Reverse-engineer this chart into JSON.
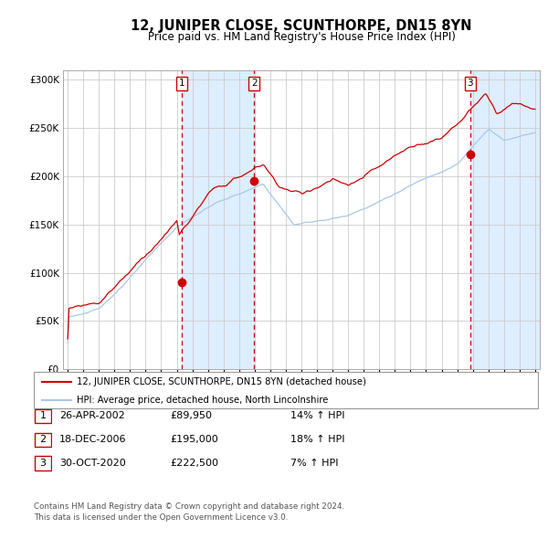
{
  "title": "12, JUNIPER CLOSE, SCUNTHORPE, DN15 8YN",
  "subtitle": "Price paid vs. HM Land Registry's House Price Index (HPI)",
  "legend_line1": "12, JUNIPER CLOSE, SCUNTHORPE, DN15 8YN (detached house)",
  "legend_line2": "HPI: Average price, detached house, North Lincolnshire",
  "footer1": "Contains HM Land Registry data © Crown copyright and database right 2024.",
  "footer2": "This data is licensed under the Open Government Licence v3.0.",
  "transactions": [
    {
      "num": 1,
      "date": "26-APR-2002",
      "price": "£89,950",
      "pct": "14%",
      "dir": "↑"
    },
    {
      "num": 2,
      "date": "18-DEC-2006",
      "price": "£195,000",
      "pct": "18%",
      "dir": "↑"
    },
    {
      "num": 3,
      "date": "30-OCT-2020",
      "price": "£222,500",
      "pct": "7%",
      "dir": "↑"
    }
  ],
  "sale_dates_decimal": [
    2002.32,
    2006.96,
    2020.83
  ],
  "sale_prices": [
    89950,
    195000,
    222500
  ],
  "hpi_color": "#a8c8e8",
  "property_color": "#cc0000",
  "shade_color": "#ddeeff",
  "grid_color": "#cccccc",
  "background_color": "#ffffff",
  "box_color": "#cc0000",
  "ylim": [
    0,
    310000
  ],
  "yticks": [
    0,
    50000,
    100000,
    150000,
    200000,
    250000,
    300000
  ],
  "xlim_start": 1994.7,
  "xlim_end": 2025.3
}
